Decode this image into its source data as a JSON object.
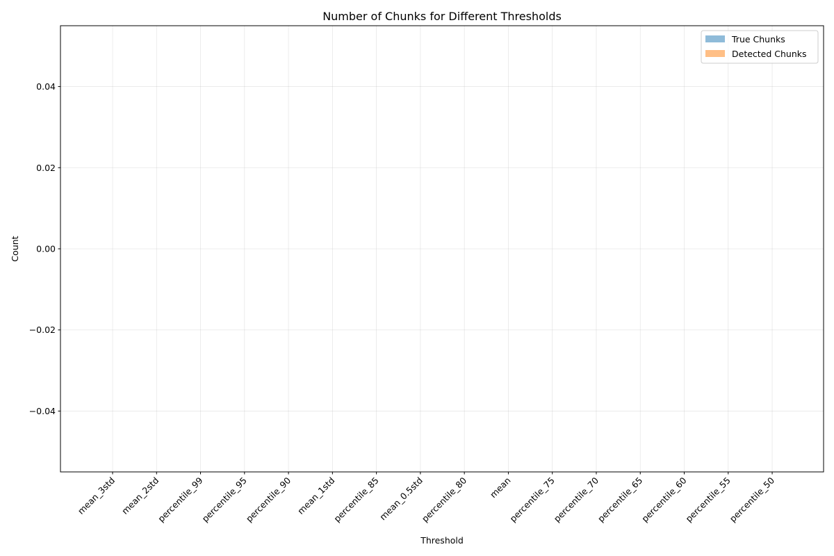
{
  "chart_data": {
    "type": "bar",
    "title": "Number of Chunks for Different Thresholds",
    "xlabel": "Threshold",
    "ylabel": "Count",
    "categories": [
      "mean_3std",
      "mean_2std",
      "percentile_99",
      "percentile_95",
      "percentile_90",
      "mean_1std",
      "percentile_85",
      "mean_0.5std",
      "percentile_80",
      "mean",
      "percentile_75",
      "percentile_70",
      "percentile_65",
      "percentile_60",
      "percentile_55",
      "percentile_50"
    ],
    "series": [
      {
        "name": "True Chunks",
        "color": "#1f77b4",
        "opacity": 0.5,
        "values": [
          0,
          0,
          0,
          0,
          0,
          0,
          0,
          0,
          0,
          0,
          0,
          0,
          0,
          0,
          0,
          0
        ]
      },
      {
        "name": "Detected Chunks",
        "color": "#ff7f0e",
        "opacity": 0.5,
        "values": [
          0,
          0,
          0,
          0,
          0,
          0,
          0,
          0,
          0,
          0,
          0,
          0,
          0,
          0,
          0,
          0
        ]
      }
    ],
    "ylim": [
      -0.055,
      0.055
    ],
    "yticks": [
      -0.04,
      -0.02,
      0.0,
      0.02,
      0.04
    ],
    "ytick_labels": [
      "−0.04",
      "−0.02",
      "0.00",
      "0.02",
      "0.04"
    ],
    "grid": true,
    "legend_position": "top-right"
  }
}
